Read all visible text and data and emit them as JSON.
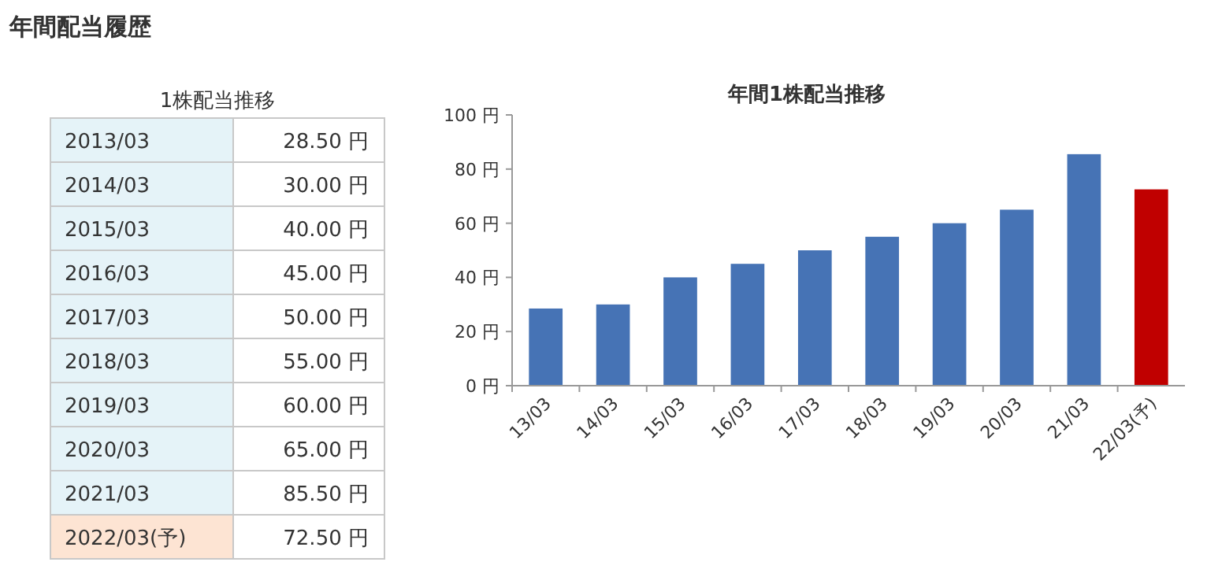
{
  "chart_data": [
    {
      "type": "other",
      "title": "年間配当履歴",
      "subtitle": "1株配当推移",
      "categories": [
        "2013/03",
        "2014/03",
        "2015/03",
        "2016/03",
        "2017/03",
        "2018/03",
        "2019/03",
        "2020/03",
        "2021/03",
        "2022/03(予)"
      ],
      "value_labels": [
        "28.50 円",
        "30.00 円",
        "40.00 円",
        "45.00 円",
        "50.00 円",
        "55.00 円",
        "60.00 円",
        "65.00 円",
        "85.50 円",
        "72.50 円"
      ],
      "colors": [
        "#e5f3f8",
        "#e5f3f8",
        "#e5f3f8",
        "#e5f3f8",
        "#e5f3f8",
        "#e5f3f8",
        "#e5f3f8",
        "#e5f3f8",
        "#e5f3f8",
        "#fde4d3"
      ]
    },
    {
      "type": "bar",
      "title": "年間1株配当推移",
      "categories": [
        "13/03",
        "14/03",
        "15/03",
        "16/03",
        "17/03",
        "18/03",
        "19/03",
        "20/03",
        "21/03",
        "22/03(予)"
      ],
      "values": [
        28.5,
        30,
        40,
        45,
        50,
        55,
        60,
        65,
        85.5,
        72.5
      ],
      "colors": [
        "#4673b5",
        "#4673b5",
        "#4673b5",
        "#4673b5",
        "#4673b5",
        "#4673b5",
        "#4673b5",
        "#4673b5",
        "#4673b5",
        "#c00000"
      ],
      "ylim": [
        0,
        100
      ],
      "yticks": [
        {
          "value": 0,
          "label": "0 円"
        },
        {
          "value": 20,
          "label": "20 円"
        },
        {
          "value": 40,
          "label": "40 円"
        },
        {
          "value": 60,
          "label": "60 円"
        },
        {
          "value": 80,
          "label": "80 円"
        },
        {
          "value": 100,
          "label": "100 円"
        }
      ],
      "grid": false
    }
  ]
}
